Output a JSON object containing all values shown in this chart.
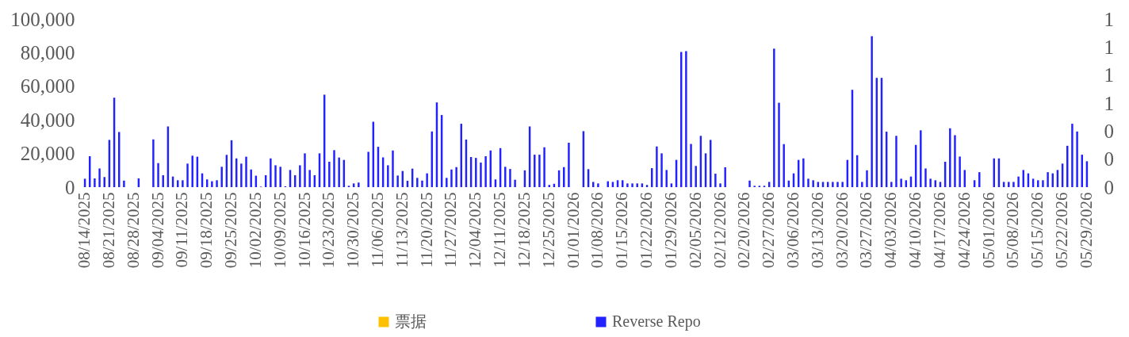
{
  "chart_data": {
    "type": "bar",
    "legend": "bottom",
    "categories": [
      "08/14/2025",
      null,
      null,
      null,
      null,
      "08/21/2025",
      null,
      null,
      null,
      null,
      "08/28/2025",
      null,
      null,
      null,
      null,
      "09/04/2025",
      null,
      null,
      null,
      null,
      "09/11/2025",
      null,
      null,
      null,
      null,
      "09/18/2025",
      null,
      null,
      null,
      null,
      "09/25/2025",
      null,
      null,
      null,
      null,
      "10/02/2025",
      null,
      null,
      null,
      null,
      "10/09/2025",
      null,
      null,
      null,
      null,
      "10/16/2025",
      null,
      null,
      null,
      null,
      "10/23/2025",
      null,
      null,
      null,
      null,
      "10/30/2025",
      null,
      null,
      null,
      null,
      "11/06/2025",
      null,
      null,
      null,
      null,
      "11/13/2025",
      null,
      null,
      null,
      null,
      "11/20/2025",
      null,
      null,
      null,
      null,
      "11/27/2025",
      null,
      null,
      null,
      null,
      "12/04/2025",
      null,
      null,
      null,
      null,
      "12/11/2025",
      null,
      null,
      null,
      null,
      "12/18/2025",
      null,
      null,
      null,
      null,
      "12/25/2025",
      null,
      null,
      null,
      null,
      "01/01/2026",
      null,
      null,
      null,
      null,
      "01/08/2026",
      null,
      null,
      null,
      null,
      "01/15/2026",
      null,
      null,
      null,
      null,
      "01/22/2026",
      null,
      null,
      null,
      null,
      "01/29/2026",
      null,
      null,
      null,
      null,
      "02/05/2026",
      null,
      null,
      null,
      null,
      "02/12/2026",
      null,
      null,
      null,
      null,
      "02/20/2026",
      null,
      null,
      null,
      null,
      "02/27/2026",
      null,
      null,
      null,
      null,
      "03/06/2026",
      null,
      null,
      null,
      null,
      "03/13/2026",
      null,
      null,
      null,
      null,
      "03/20/2026",
      null,
      null,
      null,
      null,
      "03/27/2026",
      null,
      null,
      null,
      null,
      "04/03/2026",
      null,
      null,
      null,
      null,
      "04/10/2026",
      null,
      null,
      null,
      null,
      "04/17/2026",
      null,
      null,
      null,
      null,
      "04/24/2026",
      null,
      null,
      null,
      null,
      "05/01/2026",
      null,
      null,
      null,
      null,
      "05/08/2026",
      null,
      null,
      null,
      null,
      "05/15/2026",
      null,
      null,
      null,
      null,
      "05/22/2026",
      null,
      null,
      null,
      null,
      "05/29/2026"
    ],
    "ylim": [
      0,
      100000
    ],
    "yticks": [
      0,
      {
        "value": 20000,
        "label": "20,000"
      },
      {
        "value": 40000,
        "label": "40,000"
      },
      {
        "value": 60000,
        "label": "60,000"
      },
      {
        "value": 80000,
        "label": "80,000"
      },
      {
        "value": 100000,
        "label": "100,000"
      }
    ],
    "y2lim": [
      0,
      1.2
    ],
    "y2ticks": [
      {
        "value": 0,
        "label": "0"
      },
      {
        "value": 0.2,
        "label": "0"
      },
      {
        "value": 0.4,
        "label": "0"
      },
      {
        "value": 0.6,
        "label": "1"
      },
      {
        "value": 0.8,
        "label": "1"
      },
      {
        "value": 1,
        "label": "1"
      },
      {
        "value": 1.2,
        "label": "1"
      }
    ],
    "series": [
      {
        "name": "票据",
        "color": "#ffc000",
        "axis": "y2",
        "values": [
          null,
          null,
          null,
          null,
          null,
          null,
          null,
          null,
          null,
          null,
          null,
          null,
          null,
          null,
          null,
          null,
          null,
          null,
          null,
          null,
          null,
          null,
          null,
          null,
          null,
          null,
          null,
          null,
          null,
          null,
          null,
          null,
          null,
          null,
          null,
          null,
          null,
          null,
          null,
          null,
          null,
          null,
          null,
          null,
          null,
          null,
          null,
          null,
          null,
          null,
          null,
          null,
          null,
          null,
          null,
          null,
          null,
          null,
          null,
          null,
          null,
          null,
          null,
          null,
          null,
          null,
          null,
          null,
          null,
          null,
          null,
          null,
          null,
          null,
          null,
          null,
          null,
          null,
          null,
          null,
          null,
          null,
          null,
          null,
          null,
          null,
          null,
          null,
          null,
          null,
          null,
          null,
          null,
          null,
          null,
          null,
          null,
          null,
          null,
          null,
          null,
          null,
          null,
          null,
          null,
          null,
          null,
          null,
          null,
          null,
          null,
          null,
          null,
          null,
          null,
          null,
          null,
          null,
          null,
          null,
          null,
          null,
          null,
          null,
          null,
          null,
          null,
          null,
          null,
          null,
          null,
          null,
          null,
          null,
          null,
          null,
          null,
          null,
          null,
          null,
          null,
          null,
          null,
          null,
          null,
          null,
          null,
          null,
          null,
          null,
          null,
          null,
          null,
          null,
          null,
          null,
          null,
          null,
          null,
          null,
          null,
          null,
          null,
          null,
          null,
          null,
          null,
          null,
          null,
          null,
          null,
          null,
          null,
          null,
          null,
          null,
          null,
          null,
          null,
          null,
          null,
          null,
          null,
          null,
          null,
          null,
          null,
          null,
          null,
          null,
          null,
          null,
          null,
          null,
          null,
          null,
          null,
          null,
          null,
          null,
          null,
          null,
          null,
          null,
          null,
          null
        ]
      },
      {
        "name": "Reverse Repo",
        "color": "#2222ff",
        "values": [
          5000,
          18400,
          5200,
          11100,
          6000,
          28100,
          53200,
          32800,
          3900,
          null,
          null,
          5200,
          null,
          null,
          28400,
          14300,
          7100,
          36100,
          6300,
          4100,
          4100,
          14000,
          18700,
          18100,
          8200,
          4600,
          3500,
          4100,
          12100,
          19200,
          27900,
          17100,
          14000,
          18100,
          10500,
          6800,
          300,
          7100,
          17100,
          13000,
          12100,
          500,
          10200,
          7100,
          13000,
          20100,
          10200,
          7100,
          20100,
          55000,
          15100,
          22000,
          17600,
          16200,
          800,
          2200,
          2700,
          null,
          21000,
          38900,
          24000,
          17700,
          13000,
          21800,
          6900,
          9600,
          3800,
          11000,
          5500,
          3900,
          8200,
          33100,
          50400,
          42900,
          5500,
          10500,
          11900,
          37700,
          28300,
          17900,
          17400,
          14600,
          18400,
          21800,
          4600,
          23200,
          12100,
          10800,
          4400,
          null,
          10000,
          36100,
          19300,
          19300,
          23700,
          1300,
          2000,
          10000,
          11900,
          26400,
          null,
          null,
          33300,
          10700,
          3100,
          2200,
          null,
          3500,
          3100,
          4100,
          4100,
          2200,
          2200,
          2200,
          2200,
          1300,
          11300,
          24200,
          20100,
          10200,
          2200,
          16200,
          80400,
          80900,
          25700,
          12600,
          30500,
          20100,
          28100,
          8000,
          2200,
          11800,
          null,
          null,
          null,
          null,
          3900,
          800,
          800,
          800,
          3100,
          82400,
          50200,
          25600,
          3900,
          8200,
          16200,
          17100,
          5000,
          4100,
          3100,
          3100,
          3100,
          3100,
          3100,
          3100,
          16200,
          57900,
          19000,
          3100,
          10000,
          89800,
          65000,
          65000,
          33000,
          3100,
          30500,
          5000,
          4100,
          6300,
          25100,
          33800,
          11100,
          5000,
          4100,
          3100,
          15100,
          35000,
          30900,
          18200,
          10200,
          null,
          4100,
          8900,
          null,
          null,
          17100,
          17100,
          3100,
          3100,
          3100,
          6300,
          10200,
          8200,
          5000,
          4100,
          4100,
          8900,
          8200,
          10200,
          14000,
          24600,
          37700,
          33100,
          19300,
          15400
        ]
      }
    ]
  }
}
